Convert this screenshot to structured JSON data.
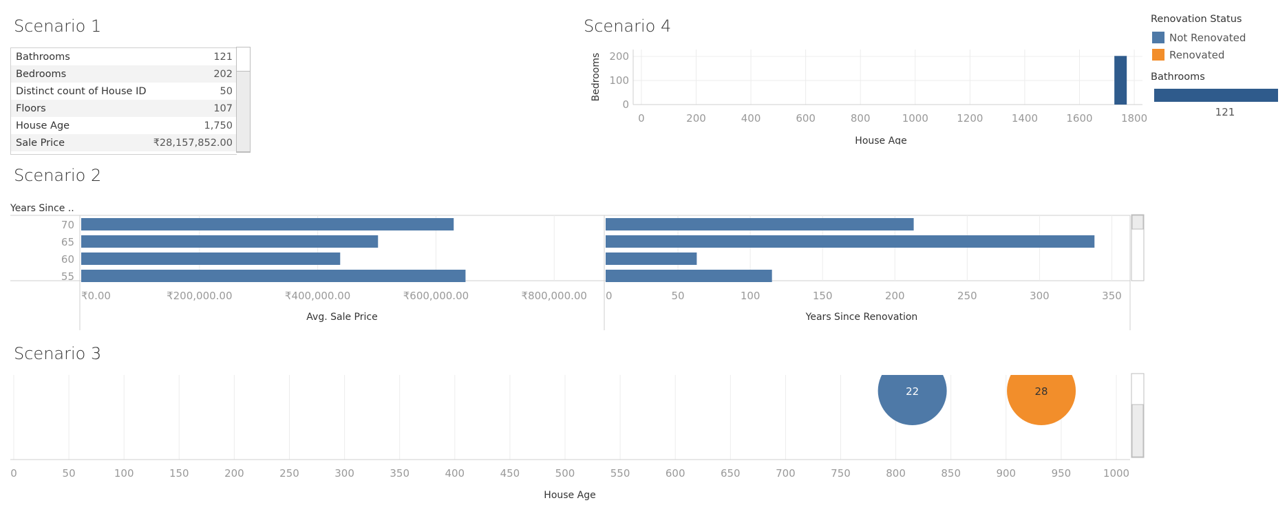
{
  "titles": {
    "s1": "Scenario 1",
    "s2": "Scenario 2",
    "s3": "Scenario 3",
    "s4": "Scenario 4"
  },
  "colors": {
    "not_renovated": "#4e79a7",
    "renovated": "#f28e2b",
    "dark_bar": "#2f5b8c"
  },
  "legend": {
    "title": "Renovation Status",
    "items": [
      {
        "label": "Not Renovated",
        "color": "#4e79a7"
      },
      {
        "label": "Renovated",
        "color": "#f28e2b"
      }
    ],
    "bathrooms_title": "Bathrooms",
    "bathrooms_value": "121"
  },
  "chart_data": [
    {
      "type": "table",
      "title": "Scenario 1",
      "rows": [
        {
          "label": "Bathrooms",
          "value": "121"
        },
        {
          "label": "Bedrooms",
          "value": "202"
        },
        {
          "label": "Distinct count of House ID",
          "value": "50"
        },
        {
          "label": "Floors",
          "value": "107"
        },
        {
          "label": "House Age",
          "value": "1,750"
        },
        {
          "label": "Sale Price",
          "value": "₹28,157,852.00"
        }
      ]
    },
    {
      "type": "bar",
      "title": "Scenario 4",
      "xlabel": "House Age",
      "ylabel": "Bedrooms",
      "xlim": [
        -30,
        1830
      ],
      "ylim": [
        0,
        200
      ],
      "xticks": [
        "0",
        "200",
        "400",
        "600",
        "800",
        "1000",
        "1200",
        "1400",
        "1600",
        "1800"
      ],
      "yticks": [
        "200",
        "100",
        "0"
      ],
      "bars": [
        {
          "x": 1750,
          "y": 202
        }
      ]
    },
    {
      "type": "bar",
      "title": "Scenario 2",
      "row_header": "Years Since ..",
      "categories": [
        "70",
        "65",
        "60",
        "55"
      ],
      "series": [
        {
          "values": [
            630000,
            502000,
            438000,
            650000
          ]
        },
        {
          "values": [
            213,
            338,
            63,
            115
          ]
        }
      ],
      "xlabel_left": "Avg. Sale Price",
      "xlabel_right": "Years Since Renovation",
      "left_xlim": [
        0,
        880000
      ],
      "right_xlim": [
        0,
        355
      ],
      "left_xticks": [
        "₹0.00",
        "₹200,000.00",
        "₹400,000.00",
        "₹600,000.00",
        "₹800,000.00"
      ],
      "right_xticks": [
        "0",
        "50",
        "100",
        "150",
        "200",
        "250",
        "300",
        "350"
      ]
    },
    {
      "type": "scatter",
      "title": "Scenario 3",
      "xlabel": "House Age",
      "xlim": [
        0,
        1000
      ],
      "xticks": [
        "0",
        "50",
        "100",
        "150",
        "200",
        "250",
        "300",
        "350",
        "400",
        "450",
        "500",
        "550",
        "600",
        "650",
        "700",
        "750",
        "800",
        "850",
        "900",
        "950",
        "1000"
      ],
      "points": [
        {
          "x": 815,
          "label": "22",
          "status": "Not Renovated"
        },
        {
          "x": 932,
          "label": "28",
          "status": "Renovated"
        }
      ]
    }
  ]
}
